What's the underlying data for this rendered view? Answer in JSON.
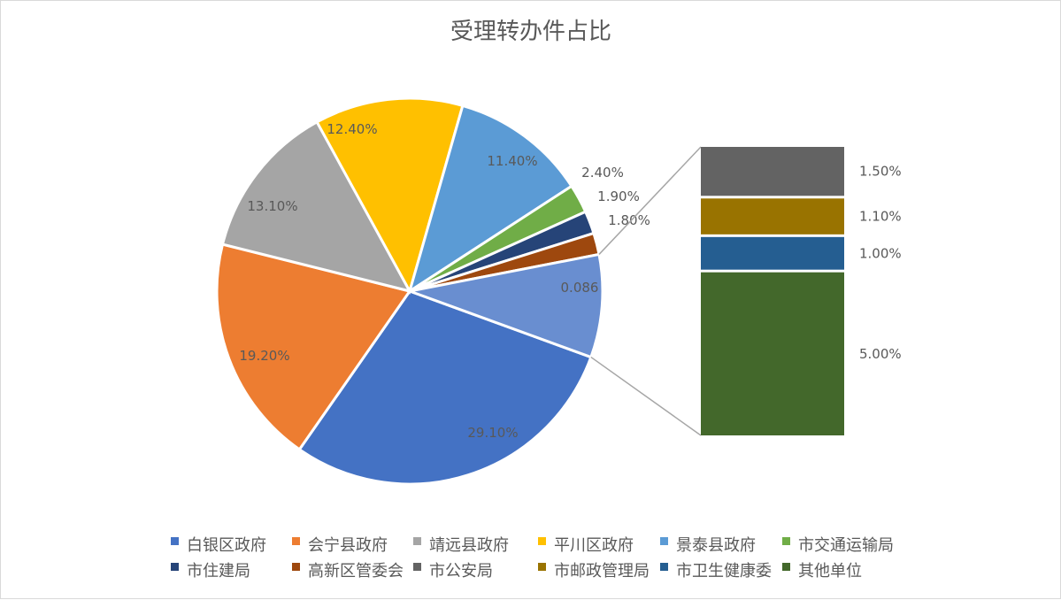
{
  "chart_data": {
    "type": "bar-of-pie",
    "title": "受理转办件占比",
    "pie": [
      {
        "name": "白银区政府",
        "value": 29.1,
        "label": "29.10%",
        "color": "#4472c4"
      },
      {
        "name": "会宁县政府",
        "value": 19.2,
        "label": "19.20%",
        "color": "#ed7d31"
      },
      {
        "name": "靖远县政府",
        "value": 13.1,
        "label": "13.10%",
        "color": "#a5a5a5"
      },
      {
        "name": "平川区政府",
        "value": 12.4,
        "label": "12.40%",
        "color": "#ffc000"
      },
      {
        "name": "景泰县政府",
        "value": 11.4,
        "label": "11.40%",
        "color": "#5b9bd5"
      },
      {
        "name": "市交通运输局",
        "value": 2.4,
        "label": "2.40%",
        "color": "#70ad47"
      },
      {
        "name": "市住建局",
        "value": 1.9,
        "label": "1.90%",
        "color": "#264478"
      },
      {
        "name": "高新区管委会",
        "value": 1.8,
        "label": "1.80%",
        "color": "#9e480e"
      },
      {
        "name": "其他",
        "value": 8.6,
        "label": "0.086",
        "color": "#698ed0"
      }
    ],
    "bar": [
      {
        "name": "市公安局",
        "value": 1.5,
        "label": "1.50%",
        "color": "#636363"
      },
      {
        "name": "市邮政管理局",
        "value": 1.1,
        "label": "1.10%",
        "color": "#997300"
      },
      {
        "name": "市卫生健康委",
        "value": 1.0,
        "label": "1.00%",
        "color": "#255e91"
      },
      {
        "name": "其他单位",
        "value": 5.0,
        "label": "5.00%",
        "color": "#43682b"
      }
    ],
    "legend": [
      {
        "name": "白银区政府",
        "color": "#4472c4"
      },
      {
        "name": "会宁县政府",
        "color": "#ed7d31"
      },
      {
        "name": "靖远县政府",
        "color": "#a5a5a5"
      },
      {
        "name": "平川区政府",
        "color": "#ffc000"
      },
      {
        "name": "景泰县政府",
        "color": "#5b9bd5"
      },
      {
        "name": "市交通运输局",
        "color": "#70ad47"
      },
      {
        "name": "市住建局",
        "color": "#264478"
      },
      {
        "name": "高新区管委会",
        "color": "#9e480e"
      },
      {
        "name": "市公安局",
        "color": "#636363"
      },
      {
        "name": "市邮政管理局",
        "color": "#997300"
      },
      {
        "name": "市卫生健康委",
        "color": "#255e91"
      },
      {
        "name": "其他单位",
        "color": "#43682b"
      }
    ],
    "legend_position": "bottom"
  }
}
